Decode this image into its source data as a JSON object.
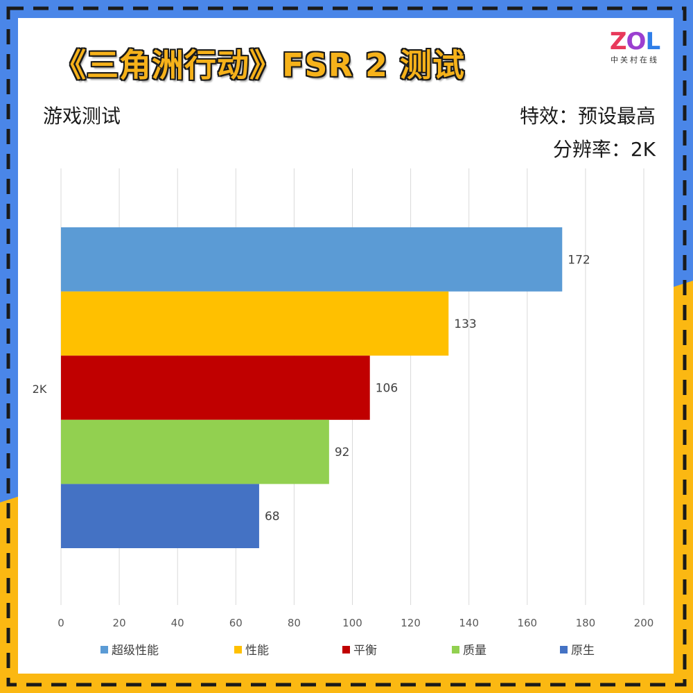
{
  "header": {
    "title": "《三角洲行动》FSR 2 测试",
    "left_label": "游戏测试",
    "effects_label": "特效：预设最高",
    "resolution_label": "分辨率：2K"
  },
  "logo": {
    "letters": [
      "Z",
      "O",
      "L"
    ],
    "subtitle": "中关村在线"
  },
  "colors": {
    "border_blue": "#4a86e8",
    "border_yellow": "#fbb812",
    "dash": "#1a1a1a",
    "grid": "#d9d9d9"
  },
  "chart_data": {
    "type": "bar",
    "orientation": "horizontal",
    "categories": [
      "2K"
    ],
    "series": [
      {
        "name": "超级性能",
        "values": [
          172
        ],
        "color": "#5b9bd5"
      },
      {
        "name": "性能",
        "values": [
          133
        ],
        "color": "#ffc000"
      },
      {
        "name": "平衡",
        "values": [
          106
        ],
        "color": "#c00000"
      },
      {
        "name": "质量",
        "values": [
          92
        ],
        "color": "#92d050"
      },
      {
        "name": "原生",
        "values": [
          68
        ],
        "color": "#4472c4"
      }
    ],
    "xlim": [
      0,
      200
    ],
    "xticks": [
      0,
      20,
      40,
      60,
      80,
      100,
      120,
      140,
      160,
      180,
      200
    ],
    "grid": true,
    "legend": "bottom",
    "data_labels": true
  }
}
